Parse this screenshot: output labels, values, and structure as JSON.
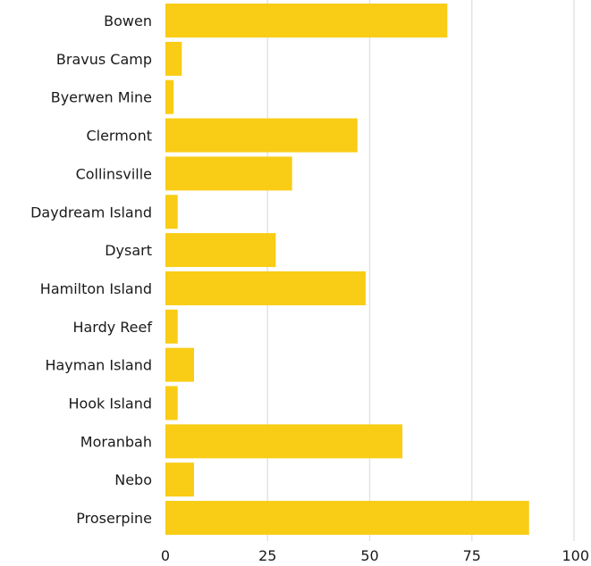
{
  "chart_data": {
    "type": "bar",
    "orientation": "horizontal",
    "categories": [
      "Bowen",
      "Bravus Camp",
      "Byerwen Mine",
      "Clermont",
      "Collinsville",
      "Daydream Island",
      "Dysart",
      "Hamilton Island",
      "Hardy Reef",
      "Hayman Island",
      "Hook Island",
      "Moranbah",
      "Nebo",
      "Proserpine"
    ],
    "values": [
      69,
      4,
      2,
      47,
      31,
      3,
      27,
      49,
      3,
      7,
      3,
      58,
      7,
      89
    ],
    "xlim": [
      0,
      100
    ],
    "xticks": [
      0,
      25,
      50,
      75,
      100
    ],
    "xlabel": "",
    "ylabel": "",
    "title": "",
    "grid": true,
    "bar_color": "#f9cc15",
    "grid_color": "#e3e3e3"
  }
}
